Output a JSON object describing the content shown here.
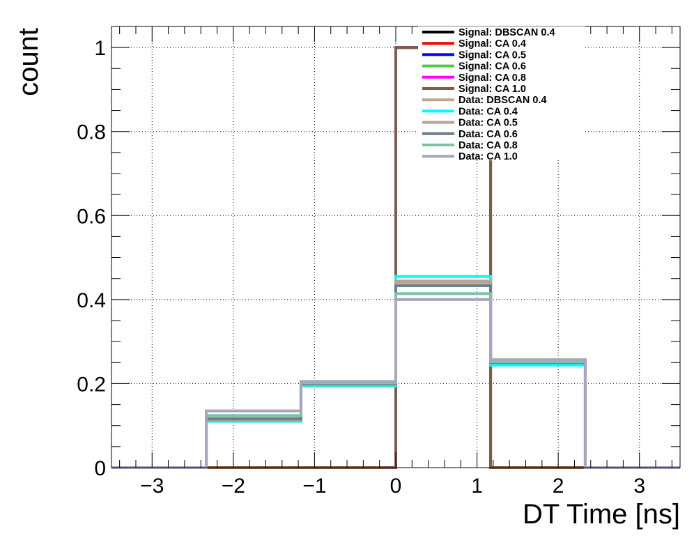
{
  "chart_data": {
    "type": "histogram",
    "title": "",
    "xlabel": "DT Time [ns]",
    "ylabel": "count",
    "xlim": [
      -3.5,
      3.5
    ],
    "ylim": [
      0,
      1.05
    ],
    "grid": true,
    "legend_position": "top-center",
    "x_ticks": [
      -3,
      -2,
      -1,
      0,
      1,
      2,
      3
    ],
    "y_ticks": [
      0,
      0.2,
      0.4,
      0.6,
      0.8,
      1
    ],
    "bin_edges": [
      -3.5,
      -2.333,
      -1.167,
      0,
      1.167,
      2.333,
      3.5
    ],
    "series": [
      {
        "name": "Signal: DBSCAN 0.4",
        "color": "#000000",
        "values": [
          0,
          0,
          0,
          1.0,
          0,
          0
        ]
      },
      {
        "name": "Signal: CA 0.4",
        "color": "#ff0000",
        "values": [
          0,
          0,
          0,
          1.0,
          0,
          0
        ]
      },
      {
        "name": "Signal: CA 0.5",
        "color": "#0000ff",
        "values": [
          0,
          0,
          0,
          1.0,
          0,
          0
        ]
      },
      {
        "name": "Signal: CA 0.6",
        "color": "#52c94a",
        "values": [
          0,
          0,
          0,
          1.0,
          0,
          0
        ]
      },
      {
        "name": "Signal: CA 0.8",
        "color": "#ff00ff",
        "values": [
          0,
          0,
          0,
          1.0,
          0,
          0
        ]
      },
      {
        "name": "Signal: CA 1.0",
        "color": "#7f5c4a",
        "values": [
          0,
          0,
          0,
          1.0,
          0,
          0
        ]
      },
      {
        "name": "Data: DBSCAN 0.4",
        "color": "#bfa58a",
        "values": [
          0,
          0.117,
          0.2,
          0.44,
          0.252,
          0
        ]
      },
      {
        "name": "Data: CA 0.4",
        "color": "#00ffff",
        "values": [
          0,
          0.11,
          0.194,
          0.455,
          0.244,
          0
        ]
      },
      {
        "name": "Data: CA 0.5",
        "color": "#b4a49d",
        "values": [
          0,
          0.112,
          0.197,
          0.444,
          0.25,
          0
        ]
      },
      {
        "name": "Data: CA 0.6",
        "color": "#677f8c",
        "values": [
          0,
          0.116,
          0.2,
          0.433,
          0.25,
          0
        ]
      },
      {
        "name": "Data: CA 0.8",
        "color": "#7fc1a4",
        "values": [
          0,
          0.124,
          0.202,
          0.414,
          0.252,
          0
        ]
      },
      {
        "name": "Data: CA 1.0",
        "color": "#a6a6bf",
        "values": [
          0,
          0.135,
          0.205,
          0.4,
          0.257,
          0
        ]
      }
    ]
  }
}
